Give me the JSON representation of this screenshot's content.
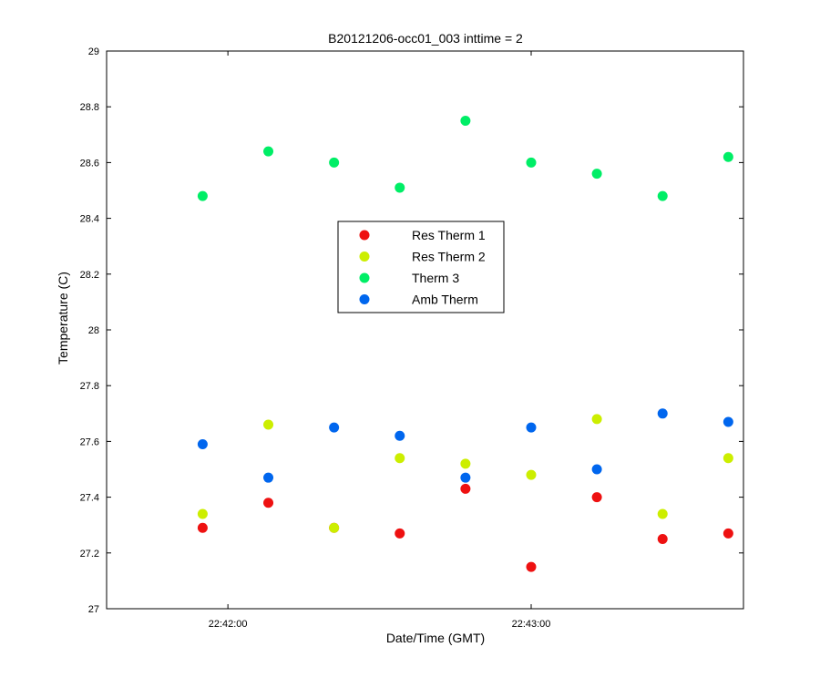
{
  "chart_data": {
    "type": "scatter",
    "title": "B20121206-occ01_003 inttime = 2",
    "xlabel": "Date/Time (GMT)",
    "ylabel": "Temperature (C)",
    "x_axis_type": "time",
    "xlim": [
      "22:41:36",
      "22:43:42"
    ],
    "xticks": [
      "22:42:00",
      "22:43:00"
    ],
    "ylim": [
      27,
      29
    ],
    "yticks": [
      "27",
      "27.2",
      "27.4",
      "27.6",
      "27.8",
      "28",
      "28.2",
      "28.4",
      "28.6",
      "28.8",
      "29"
    ],
    "grid": false,
    "legend_position": "center",
    "x": [
      "22:41:55",
      "22:42:08",
      "22:42:21",
      "22:42:34",
      "22:42:47",
      "22:43:00",
      "22:43:13",
      "22:43:26",
      "22:43:39"
    ],
    "series": [
      {
        "name": "Res Therm 1",
        "color": "#ee1111",
        "values": [
          27.29,
          27.38,
          27.29,
          27.27,
          27.43,
          27.15,
          27.4,
          27.25,
          27.27
        ]
      },
      {
        "name": "Res Therm 2",
        "color": "#ccee00",
        "values": [
          27.34,
          27.66,
          27.29,
          27.54,
          27.52,
          27.48,
          27.68,
          27.34,
          27.54
        ]
      },
      {
        "name": "Therm 3",
        "color": "#00ee66",
        "values": [
          28.48,
          28.64,
          28.6,
          28.51,
          28.75,
          28.6,
          28.56,
          28.48,
          28.62
        ]
      },
      {
        "name": "Amb Therm",
        "color": "#0066ee",
        "values": [
          27.59,
          27.47,
          27.65,
          27.62,
          27.47,
          27.65,
          27.5,
          27.7,
          27.67
        ]
      }
    ]
  }
}
